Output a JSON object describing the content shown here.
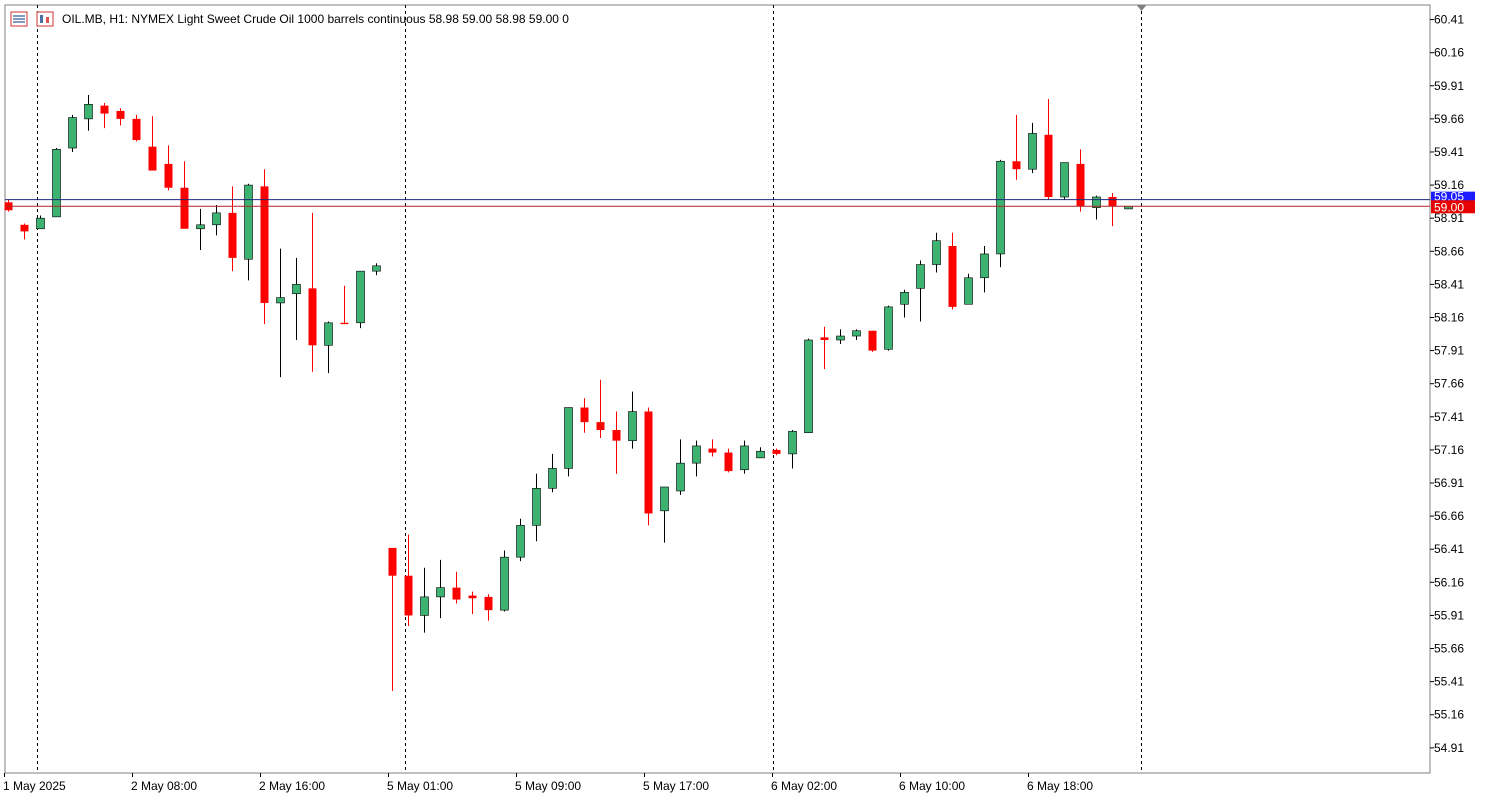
{
  "header": {
    "symbol_line": "OIL.MB, H1:  NYMEX Light Sweet Crude Oil 1000 barrels continuous  58.98 59.00 58.98 59.00  0",
    "icons": [
      "market-watch-icon",
      "chart-properties-icon"
    ]
  },
  "colors": {
    "bull": "#3cb371",
    "bear": "#ff0000",
    "doji": "#00e600",
    "ask_line": "#1c2a7e",
    "bid_line": "#b22222",
    "ask_label_bg": "#1c1cff",
    "bid_label_bg": "#e60000",
    "axis": "#000000",
    "frame": "#808080",
    "separator": "#000000"
  },
  "chart_data": {
    "type": "candlestick",
    "timeframe": "H1",
    "ylim": [
      54.72,
      60.52
    ],
    "y_ticks": [
      "60.41",
      "60.16",
      "59.91",
      "59.66",
      "59.41",
      "59.16",
      "58.91",
      "58.66",
      "58.41",
      "58.16",
      "57.91",
      "57.66",
      "57.41",
      "57.16",
      "56.91",
      "56.66",
      "56.41",
      "56.16",
      "55.91",
      "55.66",
      "55.41",
      "55.16",
      "54.91"
    ],
    "x_tick_labels": [
      {
        "label": "1 May 2025",
        "bar": 0
      },
      {
        "label": "2 May 08:00",
        "bar": 8
      },
      {
        "label": "2 May 16:00",
        "bar": 16
      },
      {
        "label": "5 May 01:00",
        "bar": 24
      },
      {
        "label": "5 May 09:00",
        "bar": 32
      },
      {
        "label": "5 May 17:00",
        "bar": 40
      },
      {
        "label": "6 May 02:00",
        "bar": 48
      },
      {
        "label": "6 May 10:00",
        "bar": 56
      },
      {
        "label": "6 May 18:00",
        "bar": 64
      }
    ],
    "period_separator_bars": [
      1,
      24,
      47,
      70
    ],
    "ask_price": 59.05,
    "bid_price": 59.0,
    "ask_label": "59.05",
    "bid_label": "59.00",
    "candles": [
      {
        "o": 59.03,
        "h": 59.05,
        "l": 58.96,
        "c": 58.97
      },
      {
        "o": 58.86,
        "h": 58.87,
        "l": 58.75,
        "c": 58.81
      },
      {
        "o": 58.83,
        "h": 58.93,
        "l": 58.83,
        "c": 58.91
      },
      {
        "o": 58.92,
        "h": 59.44,
        "l": 58.92,
        "c": 59.43
      },
      {
        "o": 59.44,
        "h": 59.69,
        "l": 59.41,
        "c": 59.67
      },
      {
        "o": 59.66,
        "h": 59.84,
        "l": 59.57,
        "c": 59.77
      },
      {
        "o": 59.76,
        "h": 59.78,
        "l": 59.59,
        "c": 59.7
      },
      {
        "o": 59.72,
        "h": 59.74,
        "l": 59.61,
        "c": 59.66
      },
      {
        "o": 59.66,
        "h": 59.69,
        "l": 59.49,
        "c": 59.5
      },
      {
        "o": 59.45,
        "h": 59.68,
        "l": 59.27,
        "c": 59.27
      },
      {
        "o": 59.32,
        "h": 59.46,
        "l": 59.12,
        "c": 59.14
      },
      {
        "o": 59.14,
        "h": 59.34,
        "l": 58.84,
        "c": 58.83
      },
      {
        "o": 58.83,
        "h": 58.98,
        "l": 58.67,
        "c": 58.86
      },
      {
        "o": 58.86,
        "h": 59.01,
        "l": 58.78,
        "c": 58.95
      },
      {
        "o": 58.95,
        "h": 59.15,
        "l": 58.51,
        "c": 58.61
      },
      {
        "o": 58.6,
        "h": 59.17,
        "l": 58.44,
        "c": 59.16
      },
      {
        "o": 59.15,
        "h": 59.28,
        "l": 58.11,
        "c": 58.27
      },
      {
        "o": 58.27,
        "h": 58.68,
        "l": 57.71,
        "c": 58.31
      },
      {
        "o": 58.34,
        "h": 58.61,
        "l": 57.99,
        "c": 58.41
      },
      {
        "o": 58.38,
        "h": 58.95,
        "l": 57.75,
        "c": 57.95
      },
      {
        "o": 57.95,
        "h": 58.13,
        "l": 57.74,
        "c": 58.12
      },
      {
        "o": 58.12,
        "h": 58.4,
        "l": 58.11,
        "c": 58.11
      },
      {
        "o": 58.12,
        "h": 58.51,
        "l": 58.08,
        "c": 58.51
      },
      {
        "o": 58.51,
        "h": 58.57,
        "l": 58.48,
        "c": 58.55
      },
      {
        "o": 56.42,
        "h": 56.42,
        "l": 55.34,
        "c": 56.21
      },
      {
        "o": 56.21,
        "h": 56.52,
        "l": 55.83,
        "c": 55.91
      },
      {
        "o": 55.91,
        "h": 56.27,
        "l": 55.78,
        "c": 56.05
      },
      {
        "o": 56.05,
        "h": 56.33,
        "l": 55.89,
        "c": 56.12
      },
      {
        "o": 56.12,
        "h": 56.24,
        "l": 56.0,
        "c": 56.03
      },
      {
        "o": 56.06,
        "h": 56.09,
        "l": 55.92,
        "c": 56.04
      },
      {
        "o": 56.05,
        "h": 56.07,
        "l": 55.87,
        "c": 55.95
      },
      {
        "o": 55.95,
        "h": 56.4,
        "l": 55.94,
        "c": 56.35
      },
      {
        "o": 56.35,
        "h": 56.64,
        "l": 56.32,
        "c": 56.59
      },
      {
        "o": 56.59,
        "h": 56.98,
        "l": 56.47,
        "c": 56.87
      },
      {
        "o": 56.87,
        "h": 57.13,
        "l": 56.84,
        "c": 57.02
      },
      {
        "o": 57.02,
        "h": 57.48,
        "l": 56.96,
        "c": 57.48
      },
      {
        "o": 57.48,
        "h": 57.55,
        "l": 57.29,
        "c": 57.37
      },
      {
        "o": 57.37,
        "h": 57.69,
        "l": 57.25,
        "c": 57.31
      },
      {
        "o": 57.31,
        "h": 57.45,
        "l": 56.98,
        "c": 57.23
      },
      {
        "o": 57.23,
        "h": 57.6,
        "l": 57.17,
        "c": 57.45
      },
      {
        "o": 57.45,
        "h": 57.48,
        "l": 56.59,
        "c": 56.68
      },
      {
        "o": 56.7,
        "h": 56.88,
        "l": 56.46,
        "c": 56.88
      },
      {
        "o": 56.85,
        "h": 57.24,
        "l": 56.82,
        "c": 57.06
      },
      {
        "o": 57.06,
        "h": 57.23,
        "l": 56.96,
        "c": 57.19
      },
      {
        "o": 57.17,
        "h": 57.24,
        "l": 57.11,
        "c": 57.14
      },
      {
        "o": 57.14,
        "h": 57.17,
        "l": 56.99,
        "c": 57.0
      },
      {
        "o": 57.01,
        "h": 57.23,
        "l": 56.98,
        "c": 57.19
      },
      {
        "o": 57.1,
        "h": 57.18,
        "l": 57.1,
        "c": 57.15
      },
      {
        "o": 57.16,
        "h": 57.17,
        "l": 57.12,
        "c": 57.13
      },
      {
        "o": 57.13,
        "h": 57.31,
        "l": 57.02,
        "c": 57.3
      },
      {
        "o": 57.29,
        "h": 58.0,
        "l": 57.29,
        "c": 57.99
      },
      {
        "o": 58.01,
        "h": 58.09,
        "l": 57.77,
        "c": 57.99
      },
      {
        "o": 57.99,
        "h": 58.07,
        "l": 57.96,
        "c": 58.02
      },
      {
        "o": 58.02,
        "h": 58.07,
        "l": 57.99,
        "c": 58.06
      },
      {
        "o": 58.06,
        "h": 58.06,
        "l": 57.9,
        "c": 57.91
      },
      {
        "o": 57.92,
        "h": 58.25,
        "l": 57.91,
        "c": 58.24
      },
      {
        "o": 58.26,
        "h": 58.37,
        "l": 58.16,
        "c": 58.35
      },
      {
        "o": 58.38,
        "h": 58.59,
        "l": 58.13,
        "c": 58.56
      },
      {
        "o": 58.56,
        "h": 58.8,
        "l": 58.5,
        "c": 58.74
      },
      {
        "o": 58.7,
        "h": 58.8,
        "l": 58.22,
        "c": 58.24
      },
      {
        "o": 58.26,
        "h": 58.49,
        "l": 58.26,
        "c": 58.46
      },
      {
        "o": 58.46,
        "h": 58.7,
        "l": 58.35,
        "c": 58.64
      },
      {
        "o": 58.64,
        "h": 59.35,
        "l": 58.54,
        "c": 59.34
      },
      {
        "o": 59.34,
        "h": 59.69,
        "l": 59.2,
        "c": 59.28
      },
      {
        "o": 59.28,
        "h": 59.63,
        "l": 59.25,
        "c": 59.55
      },
      {
        "o": 59.54,
        "h": 59.81,
        "l": 59.05,
        "c": 59.07
      },
      {
        "o": 59.07,
        "h": 59.33,
        "l": 59.05,
        "c": 59.33
      },
      {
        "o": 59.32,
        "h": 59.43,
        "l": 58.96,
        "c": 59.0
      },
      {
        "o": 58.99,
        "h": 59.08,
        "l": 58.9,
        "c": 59.07
      },
      {
        "o": 59.07,
        "h": 59.1,
        "l": 58.85,
        "c": 59.0
      },
      {
        "o": 58.98,
        "h": 59.0,
        "l": 58.98,
        "c": 59.0
      }
    ]
  }
}
